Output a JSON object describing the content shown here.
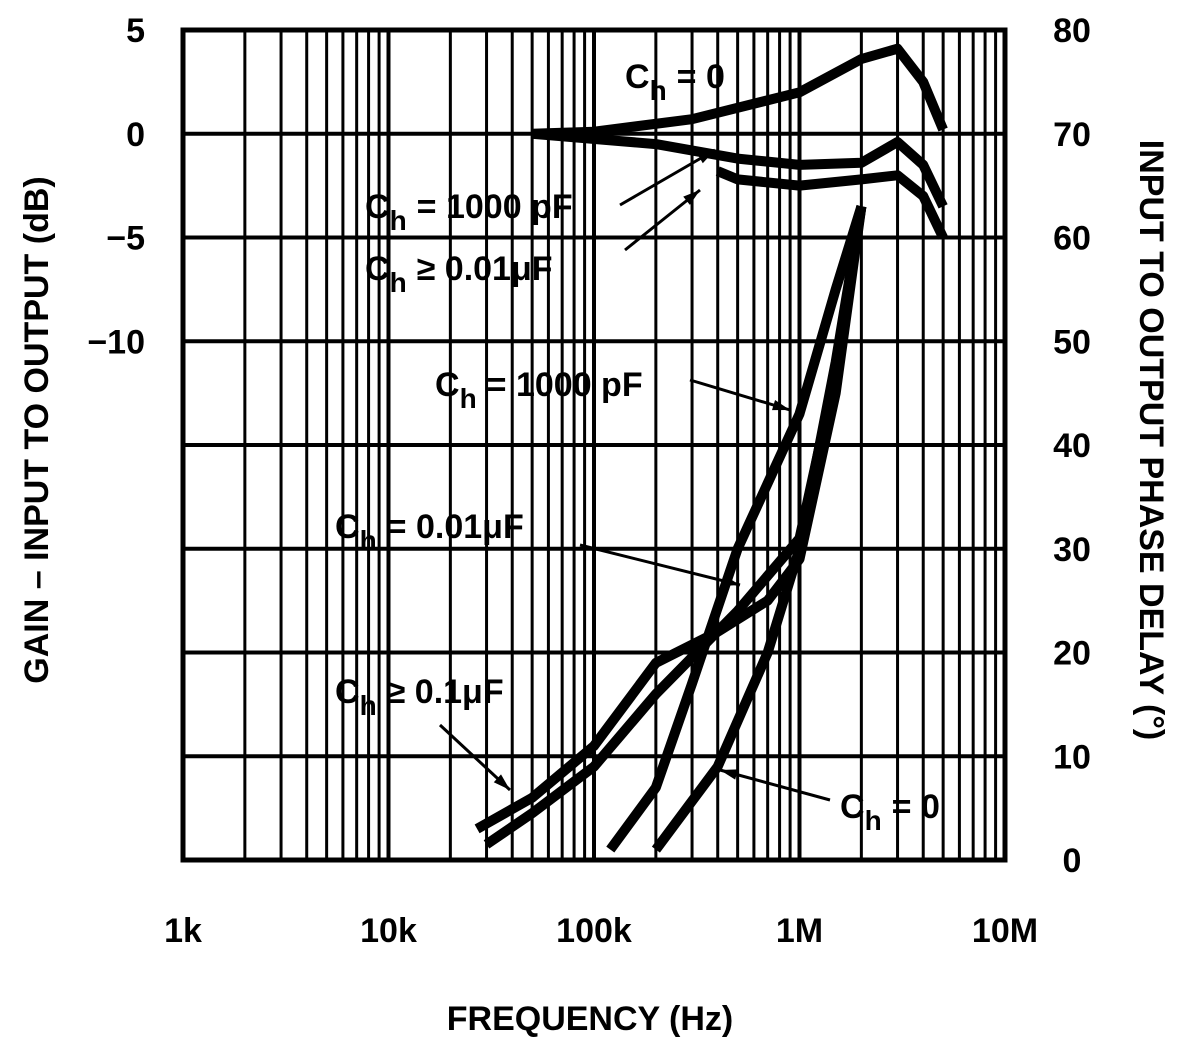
{
  "chart_data": {
    "type": "line",
    "xlabel": "FREQUENCY (Hz)",
    "ylabel": "GAIN – INPUT TO OUTPUT (dB)",
    "y2label": "INPUT TO OUTPUT PHASE DELAY (°)",
    "log_x": true,
    "grid": true,
    "xlim": [
      1000,
      10000000
    ],
    "xticks": [
      {
        "value": 1000,
        "label": "1k"
      },
      {
        "value": 10000,
        "label": "10k"
      },
      {
        "value": 100000,
        "label": "100k"
      },
      {
        "value": 1000000,
        "label": "1M"
      },
      {
        "value": 10000000,
        "label": "10M"
      }
    ],
    "ylim": [
      -35,
      5
    ],
    "yticks": [
      5,
      0,
      {
        "value": -5,
        "label": "−5"
      },
      {
        "value": -10,
        "label": "−10"
      }
    ],
    "y2lim": [
      0,
      80
    ],
    "y2ticks": [
      0,
      10,
      20,
      30,
      40,
      50,
      60,
      70,
      80
    ],
    "series": [
      {
        "color": "#000000",
        "x": [
          50000,
          100000,
          300000,
          1000000,
          2000000,
          3000000,
          4000000,
          5000000
        ],
        "values": [
          0,
          0.1,
          0.7,
          2,
          3.6,
          4.1,
          2.5,
          0.2
        ]
      },
      {
        "color": "#000000",
        "x": [
          50000,
          200000,
          500000,
          1000000,
          2000000,
          3000000,
          4000000,
          5000000
        ],
        "values": [
          0,
          -0.5,
          -1.2,
          -1.5,
          -1.4,
          -0.4,
          -1.5,
          -3.5
        ]
      },
      {
        "color": "#000000",
        "x": [
          400000,
          500000,
          1000000,
          2000000,
          3000000,
          4000000,
          5000000
        ],
        "values": [
          -1.8,
          -2.2,
          -2.5,
          -2.2,
          -2,
          -3,
          -5
        ]
      },
      {
        "color": "#000000",
        "axis": "y2",
        "x": [
          27000,
          50000,
          100000,
          200000,
          400000,
          700000,
          1000000,
          1500000,
          2000000
        ],
        "values": [
          3,
          6,
          11,
          19,
          22,
          25,
          29,
          45,
          63
        ]
      },
      {
        "color": "#000000",
        "axis": "y2",
        "x": [
          30000,
          50000,
          100000,
          200000,
          500000,
          1000000,
          1500000,
          2000000
        ],
        "values": [
          1.5,
          4.5,
          9,
          16,
          24,
          31,
          47,
          63
        ]
      },
      {
        "color": "#000000",
        "axis": "y2",
        "x": [
          120000,
          200000,
          300000,
          500000,
          1000000,
          1500000,
          2000000
        ],
        "values": [
          1,
          7,
          17,
          30,
          43,
          55,
          63
        ]
      },
      {
        "color": "#000000",
        "axis": "y2",
        "x": [
          200000,
          400000,
          700000,
          1000000,
          1500000,
          2000000
        ],
        "values": [
          1,
          9,
          20,
          30,
          48,
          63
        ]
      }
    ],
    "annotations": [
      {
        "symbol": "C",
        "subscript": "h",
        "text": "= 0"
      },
      {
        "symbol": "C",
        "subscript": "h",
        "text": "= 1000 pF"
      },
      {
        "symbol": "C",
        "subscript": "h",
        "text": "≥ 0.01μF"
      },
      {
        "symbol": "C",
        "subscript": "h",
        "text": "= 1000 pF"
      },
      {
        "symbol": "C",
        "subscript": "h",
        "text": "= 0.01μF"
      },
      {
        "symbol": "C",
        "subscript": "h",
        "text": "≥ 0.1μF"
      },
      {
        "symbol": "C",
        "subscript": "h",
        "text": "= 0"
      }
    ]
  }
}
